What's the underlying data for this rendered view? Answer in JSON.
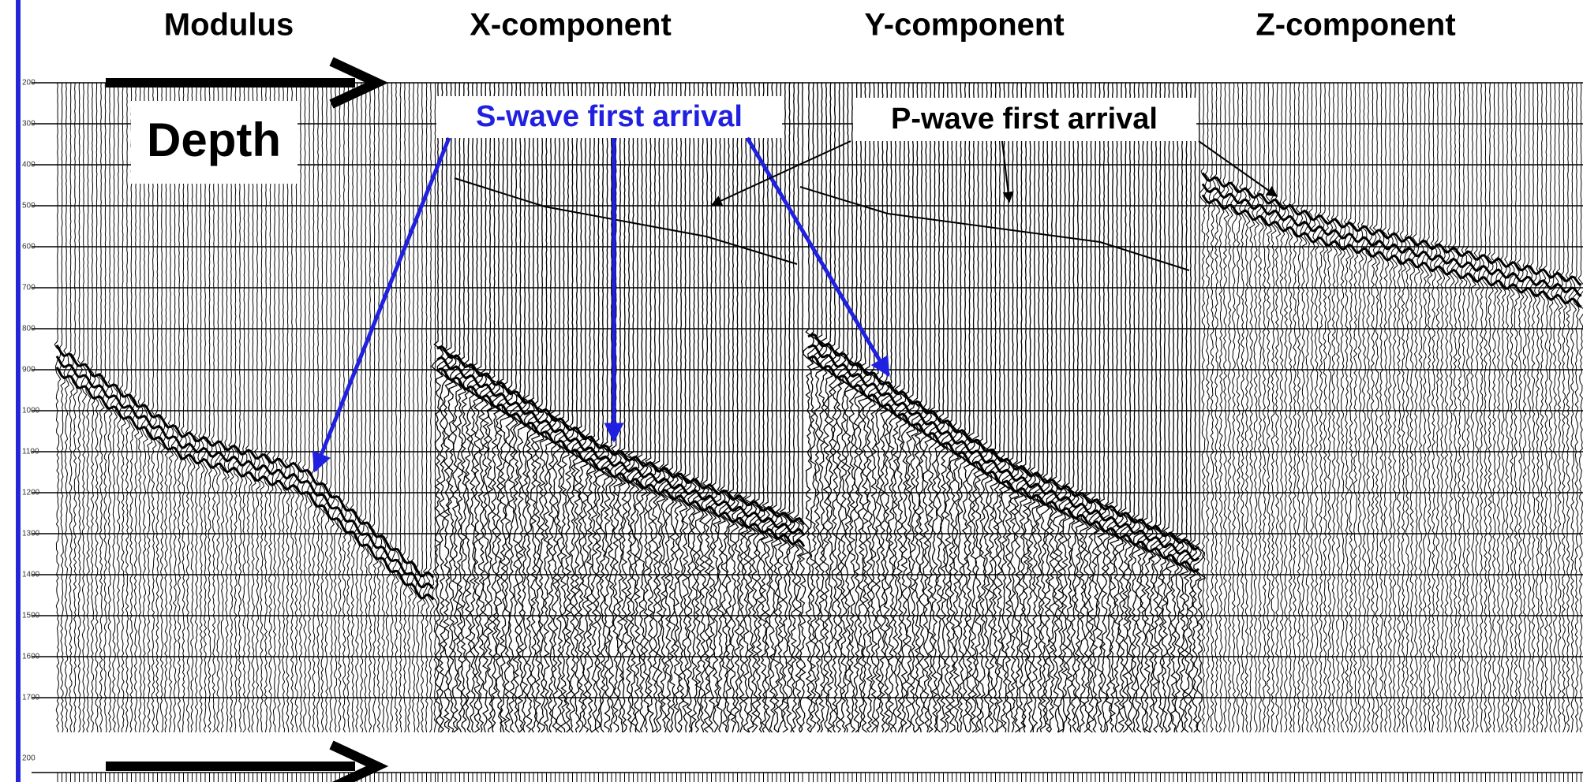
{
  "panels": [
    {
      "title": "Modulus"
    },
    {
      "title": "X-component"
    },
    {
      "title": "Y-component"
    },
    {
      "title": "Z-component"
    }
  ],
  "annotations": {
    "depth": "Depth",
    "s_wave": "S-wave first arrival",
    "p_wave": "P-wave first arrival"
  },
  "depth_ticks": [
    "200",
    "300",
    "400",
    "500",
    "600",
    "700",
    "800",
    "900",
    "1000",
    "1100",
    "1200",
    "1300",
    "1400",
    "1500",
    "1600",
    "1700"
  ],
  "lower_panel": {
    "depth_tick": "200"
  }
}
